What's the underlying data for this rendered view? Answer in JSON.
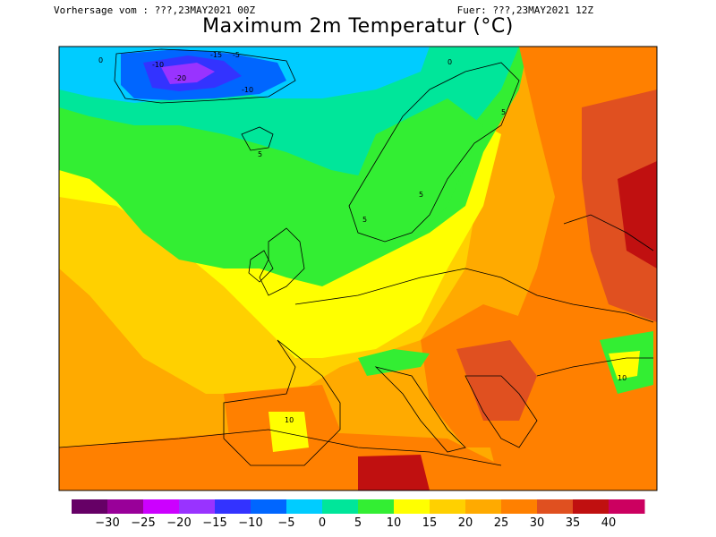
{
  "header": {
    "forecast_base": "Vorhersage vom : ???,23MAY2021 00Z",
    "valid_time": "Fuer: ???,23MAY2021 12Z",
    "title": "Maximum 2m Temperatur (°C)"
  },
  "map": {
    "field": "2m maximum temperature",
    "contour_labels": [
      {
        "text": "-5"
      },
      {
        "text": "-10"
      },
      {
        "text": "-15"
      },
      {
        "text": "0"
      },
      {
        "text": "5"
      },
      {
        "text": "10"
      },
      {
        "text": "-20"
      },
      {
        "text": "-10"
      },
      {
        "text": "0"
      },
      {
        "text": "5"
      },
      {
        "text": "5"
      },
      {
        "text": "10"
      },
      {
        "text": "5"
      }
    ]
  },
  "colorbar": {
    "labels": [
      "-30",
      "-25",
      "-20",
      "-15",
      "-10",
      "-5",
      "0",
      "5",
      "10",
      "15",
      "20",
      "25",
      "30",
      "35",
      "40"
    ],
    "colors": [
      "#660066",
      "#990099",
      "#cc00ff",
      "#9933ff",
      "#3333ff",
      "#0066ff",
      "#00ccff",
      "#00e69a",
      "#33ee33",
      "#ffff00",
      "#ffd000",
      "#ffaa00",
      "#ff8000",
      "#e05020",
      "#c01010",
      "#cc0060"
    ]
  }
}
